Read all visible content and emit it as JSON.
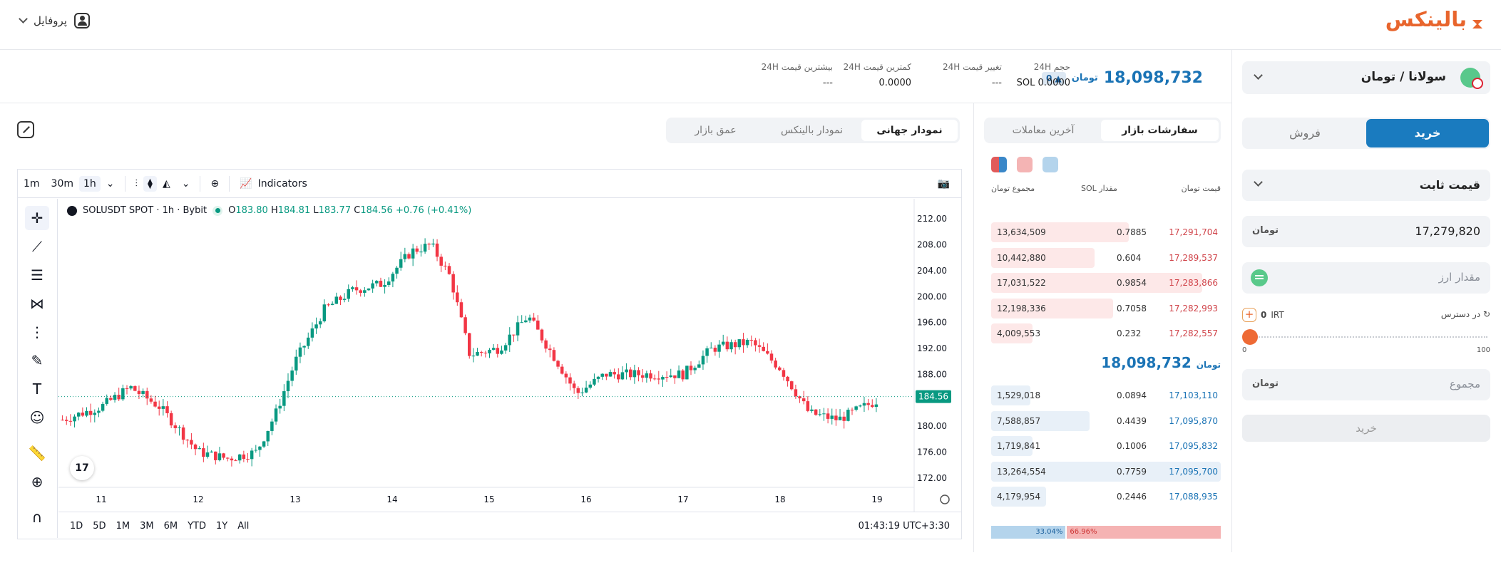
{
  "header": {
    "logo_text": "بالینکس",
    "profile_label": "پروفایل"
  },
  "ticker": {
    "last_price": "18,098,732",
    "price_unit": "تومان",
    "change_badge": "0",
    "stats": [
      {
        "label": "حجم 24H",
        "value": "SOL 0.0000"
      },
      {
        "label": "تغییر قیمت 24H",
        "value": "---"
      },
      {
        "label": "کمترین قیمت 24H",
        "value": "0.0000"
      },
      {
        "label": "بیشترین قیمت 24H",
        "value": "---"
      }
    ]
  },
  "chart_tabs": [
    "نمودار جهانی",
    "نمودار بالینکس",
    "عمق بازار"
  ],
  "tv": {
    "intervals": [
      "1m",
      "30m",
      "1h"
    ],
    "indicators_label": "Indicators",
    "symbol": "SOLUSDT SPOT · 1h · Bybit",
    "ohlc": {
      "O": "183.80",
      "H": "184.81",
      "L": "183.77",
      "C": "184.56",
      "change": "+0.76 (+0.41%)"
    },
    "ranges": [
      "1D",
      "5D",
      "1M",
      "3M",
      "6M",
      "YTD",
      "1Y",
      "All"
    ],
    "clock": "01:43:19 UTC+3:30",
    "logo_text": "17",
    "colors": {
      "up": "#089981",
      "down": "#f23645"
    }
  },
  "chart_data": {
    "type": "candlestick",
    "x": [
      "11",
      "12",
      "13",
      "14",
      "15",
      "16",
      "17",
      "18",
      "19"
    ],
    "y_ticks": [
      "212.00",
      "208.00",
      "204.00",
      "200.00",
      "196.00",
      "192.00",
      "188.00",
      "184.00",
      "180.00",
      "176.00",
      "172.00"
    ],
    "ylim": [
      170,
      214
    ],
    "current_price": "184.56",
    "close_path": [
      [
        "10.6",
        181
      ],
      [
        "11.0",
        183
      ],
      [
        "11.3",
        186
      ],
      [
        "11.6",
        183
      ],
      [
        "12.0",
        176
      ],
      [
        "12.3",
        175
      ],
      [
        "12.6",
        176
      ],
      [
        "12.8",
        182
      ],
      [
        "13.0",
        190
      ],
      [
        "13.3",
        198
      ],
      [
        "13.6",
        201
      ],
      [
        "13.9",
        202
      ],
      [
        "14.2",
        207
      ],
      [
        "14.4",
        208
      ],
      [
        "14.6",
        203
      ],
      [
        "14.8",
        191
      ],
      [
        "15.1",
        192
      ],
      [
        "15.4",
        197
      ],
      [
        "15.7",
        190
      ],
      [
        "15.9",
        185
      ],
      [
        "16.2",
        188
      ],
      [
        "16.6",
        188
      ],
      [
        "17.0",
        188
      ],
      [
        "17.3",
        192
      ],
      [
        "17.7",
        193
      ],
      [
        "18.0",
        189
      ],
      [
        "18.3",
        182
      ],
      [
        "18.6",
        181
      ],
      [
        "19.0",
        184
      ]
    ]
  },
  "orderbook": {
    "tabs": [
      "سفارشات بازار",
      "آخرین معاملات"
    ],
    "headers": {
      "price": "قیمت",
      "amount": "مقدار SOL",
      "total": "مجموع",
      "unit": "تومان"
    },
    "asks": [
      {
        "price": "17,291,704",
        "amount": "0.7885",
        "total": "13,634,509",
        "depth": 0.6
      },
      {
        "price": "17,289,537",
        "amount": "0.604",
        "total": "10,442,880",
        "depth": 0.45
      },
      {
        "price": "17,283,866",
        "amount": "0.9854",
        "total": "17,031,522",
        "depth": 0.92
      },
      {
        "price": "17,282,993",
        "amount": "0.7058",
        "total": "12,198,336",
        "depth": 0.53
      },
      {
        "price": "17,282,557",
        "amount": "0.232",
        "total": "4,009,553",
        "depth": 0.18
      }
    ],
    "mid_price": "18,098,732",
    "bids": [
      {
        "price": "17,103,110",
        "amount": "0.0894",
        "total": "1,529,018",
        "depth": 0.17
      },
      {
        "price": "17,095,870",
        "amount": "0.4439",
        "total": "7,588,857",
        "depth": 0.43
      },
      {
        "price": "17,095,832",
        "amount": "0.1006",
        "total": "1,719,841",
        "depth": 0.18
      },
      {
        "price": "17,095,700",
        "amount": "0.7759",
        "total": "13,264,554",
        "depth": 1.0
      },
      {
        "price": "17,088,935",
        "amount": "0.2446",
        "total": "4,179,954",
        "depth": 0.24
      }
    ],
    "ratio": {
      "sell": "66.96%",
      "buy": "33.04%",
      "sell_fraction": 0.6696
    },
    "colors": {
      "ask_text": "#d0444a",
      "ask_bar": "#fde8e8",
      "bid_text": "#1a73b5",
      "bid_bar": "#e8f0f8"
    }
  },
  "order_form": {
    "pair": "سولانا / تومان",
    "buy_tab": "خرید",
    "sell_tab": "فروش",
    "order_type": "قیمت ثابت",
    "price_value": "17,279,820",
    "price_unit": "تومان",
    "amount_placeholder": "مقدار ارز",
    "available_label": "در دسترس",
    "available_value": "0",
    "available_unit": "IRT",
    "slider_min": "0",
    "slider_max": "100",
    "slider_value": 0,
    "total_placeholder": "مجموع",
    "submit_label": "خرید"
  }
}
